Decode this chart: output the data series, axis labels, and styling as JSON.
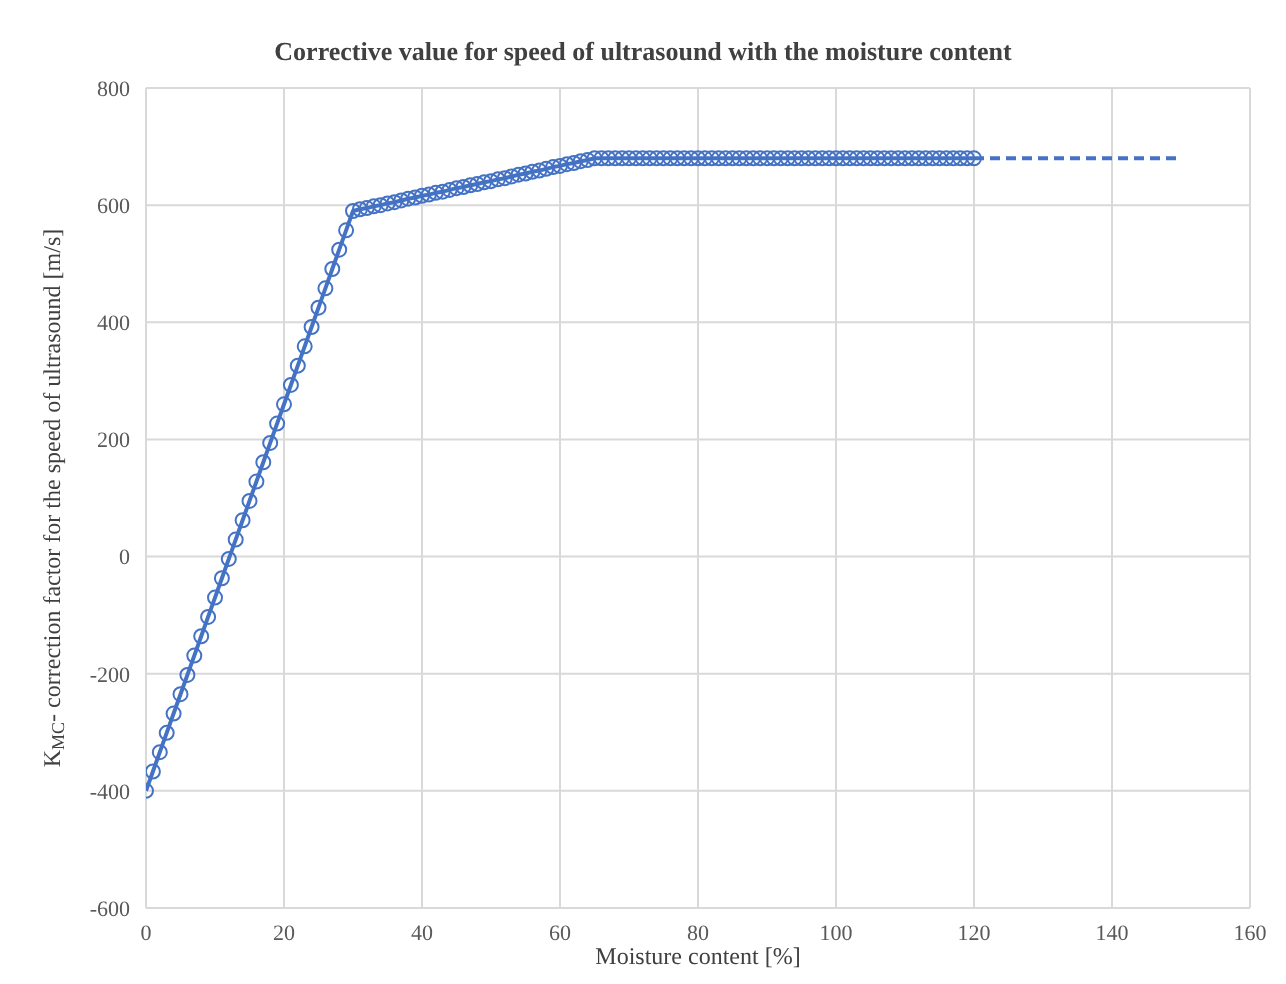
{
  "chart_data": {
    "type": "line",
    "title": "Corrective value for speed of ultrasound with the moisture content",
    "xlabel": "Moisture content [%]",
    "ylabel": "K$_{MC}$- correction factor for the speed of ultrasound [m/s]",
    "xlim": [
      0,
      160
    ],
    "xticks": [
      0,
      20,
      40,
      60,
      80,
      100,
      120,
      140,
      160
    ],
    "ylim": [
      -600,
      800
    ],
    "yticks": [
      -600,
      -400,
      -200,
      0,
      200,
      400,
      600,
      800
    ],
    "grid": true,
    "series": [
      {
        "color": "#4472c4",
        "marker": "circle",
        "line_style": "solid",
        "x": [
          0,
          1,
          2,
          3,
          4,
          5,
          6,
          7,
          8,
          9,
          10,
          11,
          12,
          13,
          14,
          15,
          16,
          17,
          18,
          19,
          20,
          21,
          22,
          23,
          24,
          25,
          26,
          27,
          28,
          29,
          30,
          31,
          32,
          33,
          34,
          35,
          36,
          37,
          38,
          39,
          40,
          41,
          42,
          43,
          44,
          45,
          46,
          47,
          48,
          49,
          50,
          51,
          52,
          53,
          54,
          55,
          56,
          57,
          58,
          59,
          60,
          61,
          62,
          63,
          64,
          65,
          66,
          67,
          68,
          69,
          70,
          71,
          72,
          73,
          74,
          75,
          76,
          77,
          78,
          79,
          80,
          81,
          82,
          83,
          84,
          85,
          86,
          87,
          88,
          89,
          90,
          91,
          92,
          93,
          94,
          95,
          96,
          97,
          98,
          99,
          100,
          101,
          102,
          103,
          104,
          105,
          106,
          107,
          108,
          109,
          110,
          111,
          112,
          113,
          114,
          115,
          116,
          117,
          118,
          119,
          120
        ],
        "values": [
          -400,
          -367,
          -334,
          -301,
          -268,
          -235,
          -202,
          -169,
          -136,
          -103,
          -70,
          -37,
          -4,
          29,
          62,
          95,
          128,
          161,
          194,
          227,
          260,
          293,
          326,
          359,
          392,
          425,
          458,
          491,
          524,
          557,
          590,
          593,
          595,
          598,
          600,
          603,
          605,
          608,
          611,
          613,
          616,
          618,
          621,
          623,
          626,
          629,
          631,
          634,
          636,
          639,
          641,
          644,
          646,
          649,
          652,
          654,
          657,
          659,
          662,
          665,
          667,
          670,
          672,
          675,
          677,
          680,
          680,
          680,
          680,
          680,
          680,
          680,
          680,
          680,
          680,
          680,
          680,
          680,
          680,
          680,
          680,
          680,
          680,
          680,
          680,
          680,
          680,
          680,
          680,
          680,
          680,
          680,
          680,
          680,
          680,
          680,
          680,
          680,
          680,
          680,
          680,
          680,
          680,
          680,
          680,
          680,
          680,
          680,
          680,
          680,
          680,
          680,
          680,
          680,
          680,
          680,
          680,
          680,
          680,
          680,
          680
        ]
      },
      {
        "color": "#4472c4",
        "marker": "none",
        "line_style": "dashed",
        "x": [
          120,
          150
        ],
        "values": [
          680,
          680
        ]
      }
    ]
  }
}
